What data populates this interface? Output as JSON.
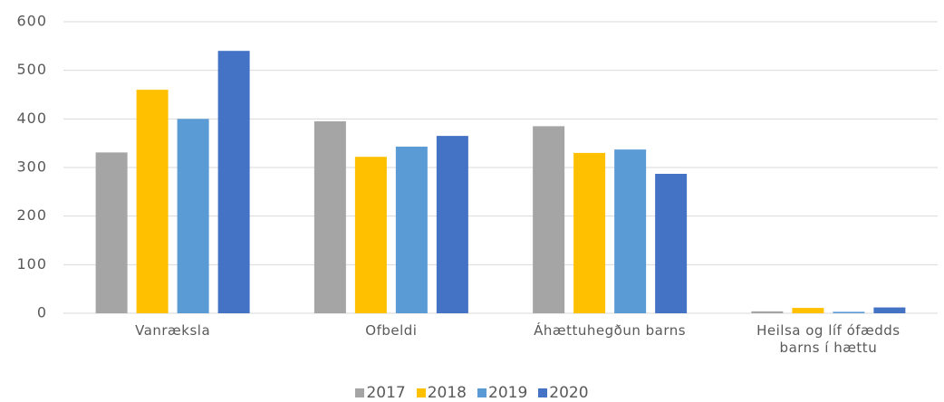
{
  "chart_data": {
    "type": "bar",
    "categories": [
      "Vanræksla",
      "Ofbeldi",
      "Áhættuhegðun barns",
      "Heilsa og líf ófædds barns í hættu"
    ],
    "series": [
      {
        "name": "2017",
        "color": "#a5a5a5",
        "values": [
          331,
          395,
          385,
          4
        ]
      },
      {
        "name": "2018",
        "color": "#ffc000",
        "values": [
          460,
          322,
          330,
          11
        ]
      },
      {
        "name": "2019",
        "color": "#5b9bd5",
        "values": [
          400,
          343,
          337,
          3
        ]
      },
      {
        "name": "2020",
        "color": "#4472c4",
        "values": [
          540,
          365,
          287,
          12
        ]
      }
    ],
    "ylim": [
      0,
      600
    ],
    "yticks": [
      0,
      100,
      200,
      300,
      400,
      500,
      600
    ],
    "grid": true,
    "legend": "bottom"
  }
}
